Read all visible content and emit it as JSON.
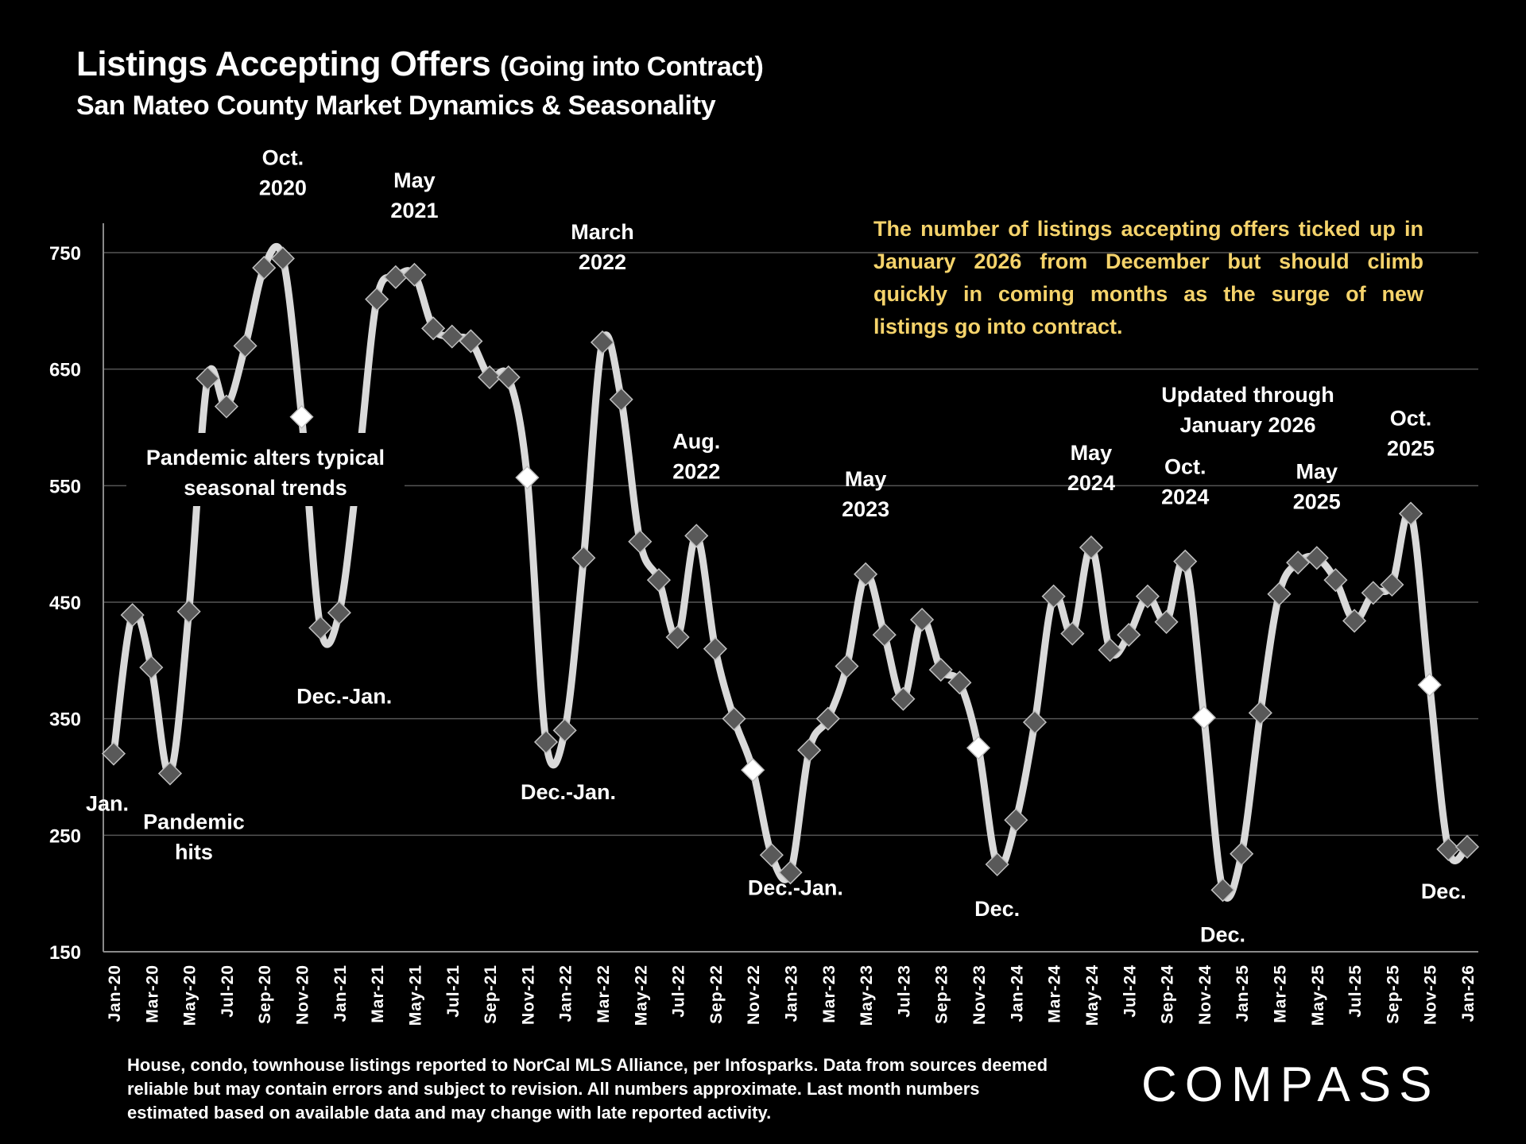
{
  "header": {
    "title": "Listings Accepting Offers",
    "title_paren": "(Going into Contract)",
    "subtitle": "San Mateo County Market Dynamics & Seasonality"
  },
  "callout": "The number of listings accepting offers ticked up in January 2026 from December but should climb quickly in coming months as the surge of new listings go into contract.",
  "updated": [
    "Updated through",
    "January 2026"
  ],
  "footnote": "House, condo, townhouse listings reported to NorCal MLS Alliance, per Infosparks. Data from sources deemed reliable but may contain errors and subject to revision. All numbers approximate. Last month numbers estimated based on available data and may change with late reported activity.",
  "logo": "COMPASS",
  "colors": {
    "line": "#d9d9d9",
    "marker": "#595959",
    "marker_highlight": "#ffffff",
    "callout": "#f5d36b",
    "grid": "#555555"
  },
  "chart_data": {
    "type": "line",
    "title": "Listings Accepting Offers (Going into Contract)",
    "subtitle": "San Mateo County Market Dynamics & Seasonality",
    "xlabel": "",
    "ylabel": "",
    "ylim": [
      150,
      750
    ],
    "yticks": [
      150,
      250,
      350,
      450,
      550,
      650,
      750
    ],
    "grid": true,
    "x": [
      "Jan-20",
      "Feb-20",
      "Mar-20",
      "Apr-20",
      "May-20",
      "Jun-20",
      "Jul-20",
      "Aug-20",
      "Sep-20",
      "Oct-20",
      "Nov-20",
      "Dec-20",
      "Jan-21",
      "Feb-21",
      "Mar-21",
      "Apr-21",
      "May-21",
      "Jun-21",
      "Jul-21",
      "Aug-21",
      "Sep-21",
      "Oct-21",
      "Nov-21",
      "Dec-21",
      "Jan-22",
      "Feb-22",
      "Mar-22",
      "Apr-22",
      "May-22",
      "Jun-22",
      "Jul-22",
      "Aug-22",
      "Sep-22",
      "Oct-22",
      "Nov-22",
      "Dec-22",
      "Jan-23",
      "Feb-23",
      "Mar-23",
      "Apr-23",
      "May-23",
      "Jun-23",
      "Jul-23",
      "Aug-23",
      "Sep-23",
      "Oct-23",
      "Nov-23",
      "Dec-23",
      "Jan-24",
      "Feb-24",
      "Mar-24",
      "Apr-24",
      "May-24",
      "Jun-24",
      "Jul-24",
      "Aug-24",
      "Sep-24",
      "Oct-24",
      "Nov-24",
      "Dec-24",
      "Jan-25",
      "Feb-25",
      "Mar-25",
      "Apr-25",
      "May-25",
      "Jun-25",
      "Jul-25",
      "Aug-25",
      "Sep-25",
      "Oct-25",
      "Nov-25",
      "Dec-25",
      "Jan-26"
    ],
    "xtick_labels": [
      "Jan-20",
      "Mar-20",
      "May-20",
      "Jul-20",
      "Sep-20",
      "Nov-20",
      "Jan-21",
      "Mar-21",
      "May-21",
      "Jul-21",
      "Sep-21",
      "Nov-21",
      "Jan-22",
      "Mar-22",
      "May-22",
      "Jul-22",
      "Sep-22",
      "Nov-22",
      "Jan-23",
      "Mar-23",
      "May-23",
      "Jul-23",
      "Sep-23",
      "Nov-23",
      "Jan-24",
      "Mar-24",
      "May-24",
      "Jul-24",
      "Sep-24",
      "Nov-24",
      "Jan-25",
      "Mar-25",
      "May-25",
      "Jul-25",
      "Sep-25",
      "Nov-25",
      "Jan-26"
    ],
    "series": [
      {
        "name": "Listings Accepting Offers",
        "values": [
          320,
          439,
          394,
          303,
          442,
          642,
          618,
          670,
          737,
          745,
          609,
          428,
          441,
          565,
          710,
          729,
          731,
          685,
          678,
          674,
          643,
          643,
          557,
          330,
          340,
          488,
          673,
          624,
          502,
          469,
          420,
          507,
          410,
          350,
          306,
          233,
          218,
          323,
          350,
          395,
          474,
          422,
          367,
          435,
          392,
          381,
          325,
          225,
          263,
          347,
          455,
          423,
          497,
          409,
          422,
          455,
          433,
          485,
          351,
          203,
          234,
          355,
          457,
          484,
          488,
          469,
          434,
          458,
          465,
          526,
          379,
          238,
          240
        ],
        "highlighted_months": [
          "Nov-20",
          "Nov-21",
          "Nov-22",
          "Nov-23",
          "Nov-24",
          "Nov-25"
        ]
      }
    ],
    "annotations": [
      {
        "text": [
          "Jan."
        ],
        "at": "Jan-20",
        "pos": "below"
      },
      {
        "text": [
          "Pandemic",
          "hits"
        ],
        "at": "Apr-20",
        "pos": "below"
      },
      {
        "text": [
          "Oct.",
          "2020"
        ],
        "at": "Oct-20",
        "pos": "above"
      },
      {
        "text": [
          "Pandemic alters typical",
          "seasonal trends"
        ],
        "at": "Sep-20",
        "pos": "middle"
      },
      {
        "text": [
          "Dec.-Jan."
        ],
        "at": "Dec-20",
        "pos": "below"
      },
      {
        "text": [
          "May",
          "2021"
        ],
        "at": "May-21",
        "pos": "above"
      },
      {
        "text": [
          "March",
          "2022"
        ],
        "at": "Mar-22",
        "pos": "above"
      },
      {
        "text": [
          "Dec.-Jan."
        ],
        "at": "Dec-21",
        "pos": "below"
      },
      {
        "text": [
          "Aug.",
          "2022"
        ],
        "at": "Aug-22",
        "pos": "above"
      },
      {
        "text": [
          "Dec.-Jan."
        ],
        "at": "Dec-22",
        "pos": "below"
      },
      {
        "text": [
          "May",
          "2023"
        ],
        "at": "May-23",
        "pos": "above"
      },
      {
        "text": [
          "Dec."
        ],
        "at": "Dec-23",
        "pos": "below"
      },
      {
        "text": [
          "May",
          "2024"
        ],
        "at": "May-24",
        "pos": "above"
      },
      {
        "text": [
          "Oct.",
          "2024"
        ],
        "at": "Oct-24",
        "pos": "above"
      },
      {
        "text": [
          "Dec."
        ],
        "at": "Dec-24",
        "pos": "below"
      },
      {
        "text": [
          "May",
          "2025"
        ],
        "at": "May-25",
        "pos": "above"
      },
      {
        "text": [
          "Oct.",
          "2025"
        ],
        "at": "Oct-25",
        "pos": "above"
      },
      {
        "text": [
          "Dec."
        ],
        "at": "Dec-25",
        "pos": "below"
      }
    ]
  }
}
